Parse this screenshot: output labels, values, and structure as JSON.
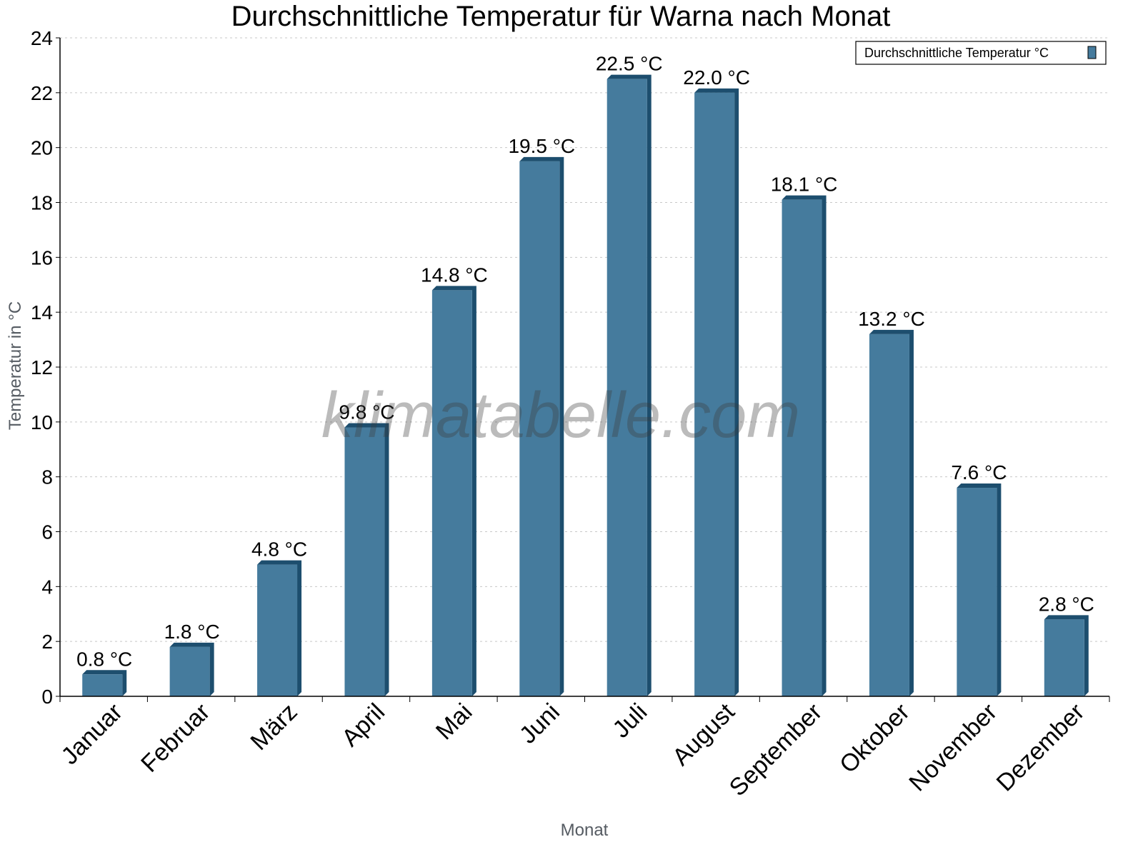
{
  "chart_data": {
    "type": "bar",
    "title": "Durchschnittliche Temperatur für Warna nach Monat",
    "xlabel": "Monat",
    "ylabel": "Temperatur in °C",
    "categories": [
      "Januar",
      "Februar",
      "März",
      "April",
      "Mai",
      "Juni",
      "Juli",
      "August",
      "September",
      "Oktober",
      "November",
      "Dezember"
    ],
    "series": [
      {
        "name": "Durchschnittliche Temperatur °C",
        "values": [
          0.8,
          1.8,
          4.8,
          9.8,
          14.8,
          19.5,
          22.5,
          22.0,
          18.1,
          13.2,
          7.6,
          2.8
        ]
      }
    ],
    "data_labels": [
      "0.8 °C",
      "1.8 °C",
      "4.8 °C",
      "9.8 °C",
      "14.8 °C",
      "19.5 °C",
      "22.5 °C",
      "22.0 °C",
      "18.1 °C",
      "13.2 °C",
      "7.6 °C",
      "2.8 °C"
    ],
    "ylim": [
      0,
      24
    ],
    "yticks": [
      0,
      2,
      4,
      6,
      8,
      10,
      12,
      14,
      16,
      18,
      20,
      22,
      24
    ],
    "grid": true,
    "legend_position": "top-right",
    "colors": {
      "bar": "#457b9d",
      "bar_shadow": "#1d4e6e",
      "grid": "#c8c8c8"
    }
  },
  "watermark": "klimatabelle.com"
}
